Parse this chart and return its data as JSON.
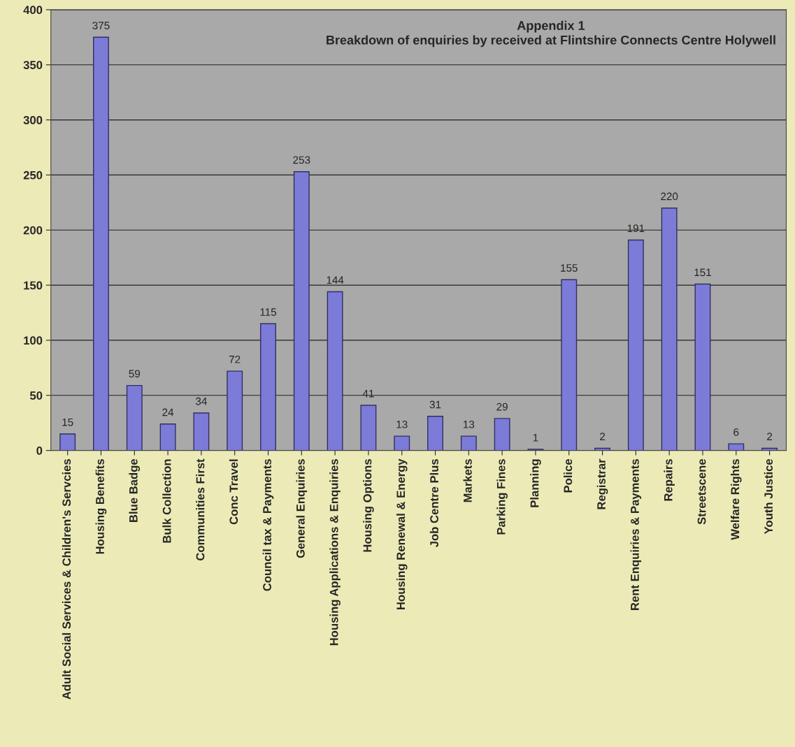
{
  "chart_data": {
    "type": "bar",
    "title": "Appendix 1\nBreakdown of enquiries by received at Flintshire Connects Centre Holywell",
    "categories": [
      "Adult Social Services & Children's Servcies",
      "Housing Benefits",
      "Blue Badge",
      "Bulk Collection",
      "Communities First",
      "Conc Travel",
      "Council tax & Payments",
      "General Enquiries",
      "Housing Applications & Enquiries",
      "Housing Options",
      "Housing Renewal & Energy",
      "Job Centre Plus",
      "Markets",
      "Parking Fines",
      "Planning",
      "Police",
      "Registrar",
      "Rent Enquiries & Payments",
      "Repairs",
      "Streetscene",
      "Welfare Rights",
      "Youth Justice"
    ],
    "values": [
      15,
      375,
      59,
      24,
      34,
      72,
      115,
      253,
      144,
      41,
      13,
      31,
      13,
      29,
      1,
      155,
      2,
      191,
      220,
      151,
      6,
      2
    ],
    "color": "#7c7cd8",
    "ylim": [
      0,
      400
    ],
    "yticks": [
      0,
      50,
      100,
      150,
      200,
      250,
      300,
      350,
      400
    ],
    "grid": "y",
    "data_labels": true
  }
}
